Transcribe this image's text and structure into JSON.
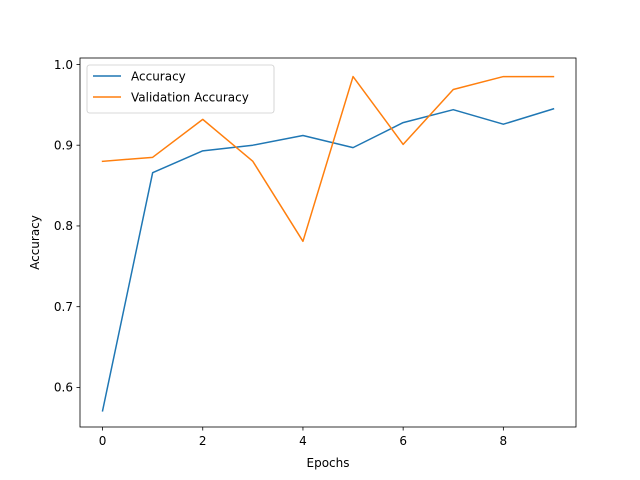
{
  "chart_data": {
    "type": "line",
    "title": "",
    "xlabel": "Epochs",
    "ylabel": "Accuracy",
    "x": [
      0,
      1,
      2,
      3,
      4,
      5,
      6,
      7,
      8,
      9
    ],
    "xlim": [
      -0.45,
      9.45
    ],
    "ylim": [
      0.551,
      1.008
    ],
    "xticks": [
      0,
      2,
      4,
      6,
      8
    ],
    "yticks": [
      0.6,
      0.7,
      0.8,
      0.9,
      1.0
    ],
    "xtick_labels": [
      "0",
      "2",
      "4",
      "6",
      "8"
    ],
    "ytick_labels": [
      "0.6",
      "0.7",
      "0.8",
      "0.9",
      "1.0"
    ],
    "grid": false,
    "legend_position": "upper-left",
    "series": [
      {
        "name": "Accuracy",
        "color": "#1f77b4",
        "values": [
          0.571,
          0.866,
          0.893,
          0.9,
          0.912,
          0.897,
          0.928,
          0.944,
          0.926,
          0.945
        ]
      },
      {
        "name": "Validation Accuracy",
        "color": "#ff7f0e",
        "values": [
          0.88,
          0.885,
          0.932,
          0.88,
          0.781,
          0.985,
          0.901,
          0.969,
          0.985,
          0.985
        ]
      }
    ]
  }
}
